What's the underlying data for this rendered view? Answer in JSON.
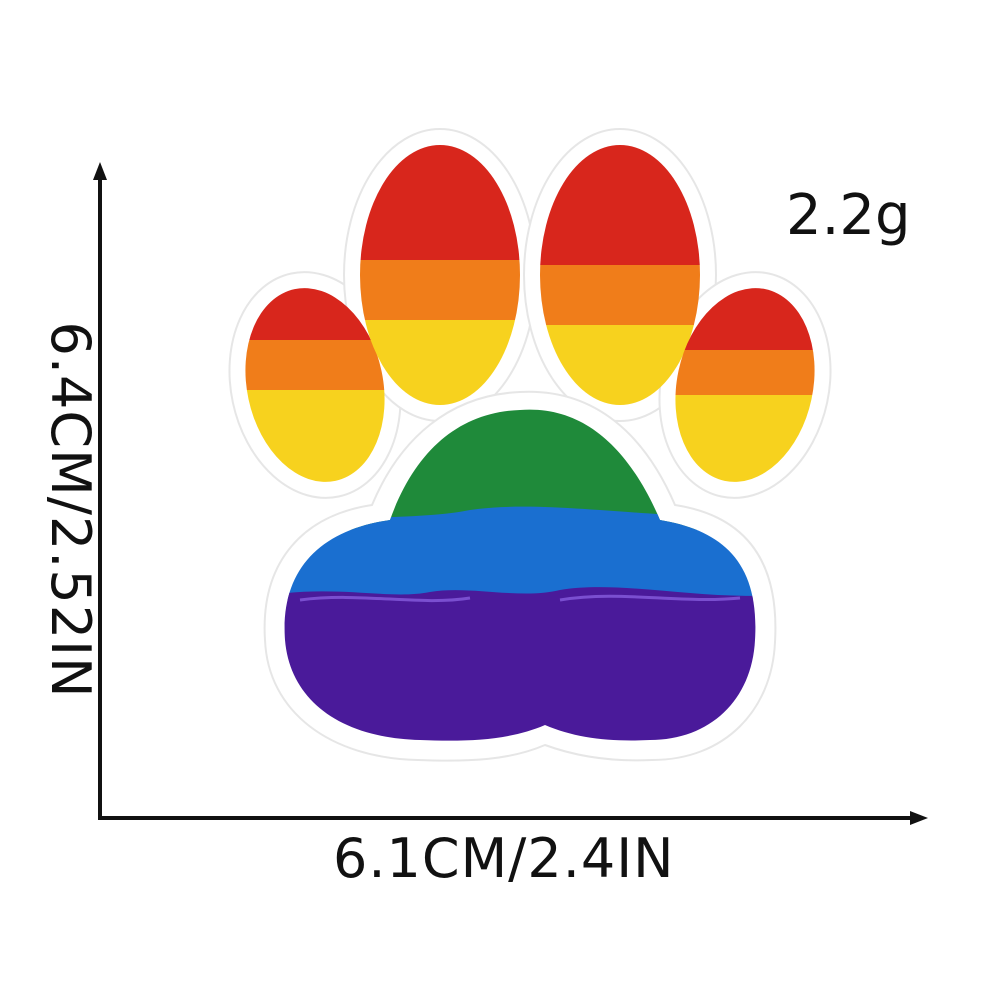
{
  "product": {
    "weight": "2.2g",
    "width": "6.1CM/2.4IN",
    "height": "6.4CM/2.52IN"
  },
  "colors": {
    "red": "#d8261c",
    "orange": "#f07d1a",
    "yellow": "#f7d21e",
    "green": "#1f8a3a",
    "blue": "#1a6fd0",
    "purple": "#4a1a9a",
    "patch_border": "#ffffff",
    "axis": "#111111"
  },
  "icons": {
    "patch": "rainbow-paw-patch-icon",
    "vertical_arrow": "arrow-up-icon",
    "horizontal_arrow": "arrow-right-icon"
  }
}
